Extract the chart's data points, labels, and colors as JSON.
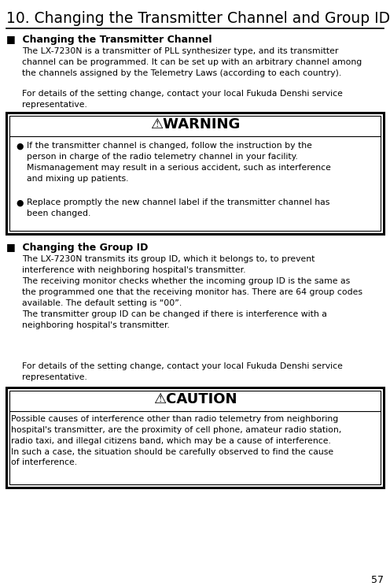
{
  "title": "10. Changing the Transmitter Channel and Group ID",
  "bg_color": "#ffffff",
  "text_color": "#000000",
  "section1_header": "■  Changing the Transmitter Channel",
  "section1_body": "The LX-7230N is a transmitter of PLL synthesizer type, and its transmitter\nchannel can be programmed. It can be set up with an arbitrary channel among\nthe channels assigned by the Telemetry Laws (according to each country).",
  "section1_extra": "For details of the setting change, contact your local Fukuda Denshi service\nrepresentative.",
  "warning_title": "⚠WARNING",
  "warning_bullets": [
    "If the transmitter channel is changed, follow the instruction by the\nperson in charge of the radio telemetry channel in your facility.\nMismanagement may result in a serious accident, such as interference\nand mixing up patients.",
    "Replace promptly the new channel label if the transmitter channel has\nbeen changed."
  ],
  "section2_header": "■  Changing the Group ID",
  "section2_body": "The LX-7230N transmits its group ID, which it belongs to, to prevent\ninterference with neighboring hospital's transmitter.\nThe receiving monitor checks whether the incoming group ID is the same as\nthe programmed one that the receiving monitor has. There are 64 group codes\navailable. The default setting is “00”.\nThe transmitter group ID can be changed if there is interference with a\nneighboring hospital's transmitter.",
  "section2_extra": "For details of the setting change, contact your local Fukuda Denshi service\nrepresentative.",
  "caution_title": "⚠CAUTION",
  "caution_body": "Possible causes of interference other than radio telemetry from neighboring\nhospital's transmitter, are the proximity of cell phone, amateur radio station,\nradio taxi, and illegal citizens band, which may be a cause of interference.\nIn such a case, the situation should be carefully observed to find the cause\nof interference.",
  "page_number": "57",
  "title_fontsize": 13.5,
  "header_fontsize": 9.0,
  "body_fontsize": 7.8,
  "warning_title_fontsize": 13.0,
  "caution_title_fontsize": 13.0,
  "bullet_fontsize": 7.8
}
